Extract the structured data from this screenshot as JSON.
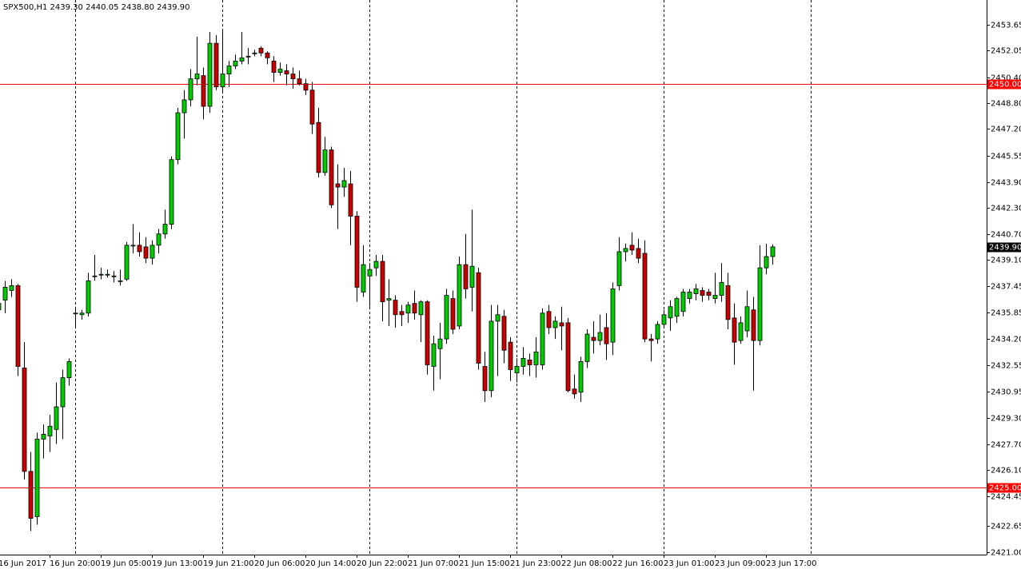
{
  "chart_data": {
    "type": "candlestick",
    "title": "SPX500,H1  2439.30 2440.05 2438.80 2439.90",
    "categories": [
      "16 Jun 2017",
      null,
      null,
      null,
      null,
      null,
      null,
      null,
      "16 Jun 20:00",
      null,
      null,
      null,
      null,
      null,
      null,
      null,
      "19 Jun 05:00",
      null,
      null,
      null,
      null,
      null,
      null,
      null,
      "19 Jun 13:00",
      null,
      null,
      null,
      null,
      null,
      null,
      null,
      "19 Jun 21:00",
      null,
      null,
      null,
      null,
      null,
      null,
      null,
      "20 Jun 06:00",
      null,
      null,
      null,
      null,
      null,
      null,
      null,
      "20 Jun 14:00",
      null,
      null,
      null,
      null,
      null,
      null,
      null,
      "20 Jun 22:00",
      null,
      null,
      null,
      null,
      null,
      null,
      null,
      "21 Jun 07:00",
      null,
      null,
      null,
      null,
      null,
      null,
      null,
      "21 Jun 15:00",
      null,
      null,
      null,
      null,
      null,
      null,
      null,
      "21 Jun 23:00",
      null,
      null,
      null,
      null,
      null,
      null,
      null,
      "22 Jun 08:00",
      null,
      null,
      null,
      null,
      null,
      null,
      null,
      "22 Jun 16:00",
      null,
      null,
      null,
      null,
      null,
      null,
      null,
      "23 Jun 01:00",
      null,
      null,
      null,
      null,
      null,
      null,
      null,
      "23 Jun 09:00",
      null,
      null,
      null,
      null,
      null,
      null,
      null,
      "23 Jun 17:00",
      null
    ],
    "open": [
      2436.0,
      2436.6,
      2437.2,
      2437.5,
      2432.4,
      2426.0,
      2423.2,
      2428.0,
      2428.2,
      2428.6,
      2430.0,
      2431.8,
      2435.8,
      2435.7,
      2435.8,
      2438.1,
      2438.2,
      2438.2,
      2438.1,
      2437.8,
      2437.9,
      2440.0,
      2440.0,
      2439.9,
      2439.2,
      2440.0,
      2440.7,
      2441.3,
      2445.3,
      2448.2,
      2449.0,
      2450.3,
      2450.5,
      2448.6,
      2452.5,
      2449.8,
      2450.6,
      2451.1,
      2451.4,
      2451.7,
      2451.9,
      2452.2,
      2451.9,
      2451.4,
      2450.7,
      2450.8,
      2450.6,
      2450.3,
      2450.0,
      2449.6,
      2447.6,
      2444.5,
      2445.9,
      2443.8,
      2443.6,
      2443.8,
      2441.8,
      2437.1,
      2438.1,
      2438.6,
      2439.0,
      2436.6,
      2436.6,
      2435.9,
      2435.8,
      2436.4,
      2435.7,
      2436.5,
      2432.5,
      2433.6,
      2434.2,
      2436.7,
      2435.0,
      2438.8,
      2437.4,
      2438.3,
      2432.5,
      2431.0,
      2435.3,
      2435.6,
      2434.0,
      2432.1,
      2432.5,
      2432.9,
      2432.6,
      2432.6,
      2435.9,
      2434.9,
      2435.2,
      2435.2,
      2431.1,
      2430.9,
      2432.8,
      2434.3,
      2434.1,
      2434.9,
      2434.0,
      2437.5,
      2439.6,
      2440.0,
      2439.8,
      2439.5,
      2434.2,
      2434.2,
      2435.1,
      2435.5,
      2435.6,
      2435.9,
      2436.7,
      2437.0,
      2437.2,
      2437.1,
      2436.7,
      2436.9,
      2437.5,
      2435.5,
      2434.1,
      2434.7,
      2436.0,
      2434.1,
      2438.6,
      2439.3
    ],
    "high": [
      2436.9,
      2437.8,
      2437.9,
      2437.6,
      2434.0,
      2427.2,
      2428.4,
      2428.9,
      2429.5,
      2431.5,
      2432.3,
      2433.0,
      2436.2,
      2436.0,
      2438.3,
      2439.4,
      2438.6,
      2438.5,
      2438.4,
      2438.5,
      2440.2,
      2441.3,
      2440.8,
      2440.5,
      2440.3,
      2441.0,
      2442.2,
      2445.5,
      2448.5,
      2449.6,
      2450.9,
      2452.9,
      2451.0,
      2453.2,
      2453.0,
      2453.4,
      2451.4,
      2451.8,
      2453.2,
      2452.2,
      2452.1,
      2452.3,
      2452.0,
      2451.7,
      2451.3,
      2451.2,
      2451.0,
      2450.8,
      2450.3,
      2450.1,
      2448.5,
      2446.7,
      2446.1,
      2445.0,
      2444.8,
      2444.6,
      2442.1,
      2440.0,
      2438.9,
      2439.4,
      2439.4,
      2437.9,
      2436.9,
      2436.3,
      2436.5,
      2437.2,
      2436.6,
      2436.6,
      2434.4,
      2435.2,
      2437.3,
      2437.2,
      2439.3,
      2440.7,
      2442.2,
      2438.6,
      2433.4,
      2436.3,
      2436.3,
      2436.0,
      2434.3,
      2433.0,
      2433.7,
      2433.3,
      2434.3,
      2436.1,
      2436.3,
      2435.6,
      2436.2,
      2435.5,
      2432.0,
      2433.1,
      2434.8,
      2435.3,
      2435.7,
      2435.8,
      2437.7,
      2440.5,
      2440.1,
      2440.8,
      2440.4,
      2440.3,
      2434.5,
      2435.3,
      2436.0,
      2436.6,
      2436.8,
      2437.3,
      2437.3,
      2437.6,
      2437.4,
      2437.3,
      2438.3,
      2438.9,
      2438.3,
      2436.4,
      2435.6,
      2437.2,
      2436.8,
      2440.0,
      2440.1,
      2440.05
    ],
    "low": [
      2435.6,
      2435.8,
      2436.8,
      2431.9,
      2425.5,
      2422.3,
      2422.7,
      2426.8,
      2427.2,
      2427.7,
      2428.0,
      2431.3,
      2435.0,
      2435.4,
      2435.6,
      2437.8,
      2437.9,
      2438.0,
      2437.7,
      2437.5,
      2437.8,
      2439.5,
      2439.3,
      2438.9,
      2438.8,
      2439.5,
      2440.4,
      2441.0,
      2445.0,
      2446.6,
      2448.6,
      2449.9,
      2447.8,
      2448.2,
      2449.6,
      2449.5,
      2449.8,
      2450.9,
      2451.2,
      2451.2,
      2451.7,
      2451.7,
      2451.2,
      2450.1,
      2450.5,
      2449.9,
      2449.7,
      2449.9,
      2449.3,
      2446.9,
      2444.2,
      2444.3,
      2442.3,
      2441.0,
      2443.0,
      2440.0,
      2436.5,
      2436.8,
      2436.2,
      2438.1,
      2435.3,
      2435.0,
      2434.9,
      2435.0,
      2435.2,
      2435.4,
      2434.0,
      2432.0,
      2431.0,
      2431.7,
      2433.9,
      2434.5,
      2434.8,
      2436.7,
      2435.9,
      2432.3,
      2430.3,
      2430.6,
      2431.9,
      2432.7,
      2431.6,
      2431.5,
      2432.0,
      2431.9,
      2431.8,
      2432.3,
      2434.5,
      2434.2,
      2433.5,
      2430.9,
      2430.5,
      2430.3,
      2432.4,
      2433.3,
      2433.8,
      2432.9,
      2433.2,
      2437.2,
      2439.0,
      2439.4,
      2438.9,
      2434.0,
      2432.8,
      2433.9,
      2434.9,
      2434.7,
      2435.2,
      2435.6,
      2436.4,
      2436.6,
      2436.5,
      2436.6,
      2436.4,
      2436.5,
      2434.8,
      2432.6,
      2433.9,
      2434.3,
      2431.0,
      2433.8,
      2438.2,
      2438.8
    ],
    "close": [
      2436.4,
      2437.4,
      2437.5,
      2432.5,
      2426.0,
      2423.1,
      2428.0,
      2428.3,
      2428.8,
      2430.0,
      2431.8,
      2432.8,
      2435.8,
      2435.8,
      2437.8,
      2438.1,
      2438.2,
      2438.2,
      2438.1,
      2437.8,
      2440.0,
      2440.0,
      2439.6,
      2439.2,
      2440.0,
      2440.7,
      2441.3,
      2445.3,
      2448.2,
      2449.0,
      2450.3,
      2450.6,
      2448.6,
      2452.5,
      2449.8,
      2450.6,
      2451.1,
      2451.4,
      2451.6,
      2451.7,
      2451.9,
      2451.9,
      2451.6,
      2450.7,
      2450.9,
      2450.6,
      2450.3,
      2450.0,
      2449.6,
      2447.5,
      2444.5,
      2445.9,
      2442.5,
      2443.6,
      2444.0,
      2441.8,
      2437.4,
      2438.8,
      2438.5,
      2439.0,
      2436.5,
      2436.7,
      2435.7,
      2435.7,
      2436.3,
      2435.8,
      2436.5,
      2432.6,
      2433.9,
      2434.2,
      2436.9,
      2434.8,
      2438.8,
      2437.3,
      2438.7,
      2432.7,
      2431.0,
      2435.3,
      2435.7,
      2433.5,
      2432.3,
      2432.5,
      2433.0,
      2432.6,
      2433.4,
      2435.8,
      2434.9,
      2435.3,
      2435.0,
      2431.0,
      2430.8,
      2432.8,
      2434.5,
      2434.1,
      2434.6,
      2433.9,
      2437.3,
      2439.6,
      2439.8,
      2439.7,
      2439.2,
      2434.2,
      2434.1,
      2435.1,
      2435.7,
      2436.2,
      2436.7,
      2437.1,
      2437.1,
      2437.3,
      2436.9,
      2436.9,
      2436.9,
      2437.7,
      2435.4,
      2434.0,
      2435.2,
      2436.2,
      2434.1,
      2438.6,
      2439.3,
      2439.9
    ],
    "up_color": "#00cc00",
    "down_color": "#cc0000",
    "ylim": [
      2420.85,
      2455.18
    ],
    "yticks": [
      {
        "value": 2421,
        "label": "2421.00"
      },
      {
        "value": 2422.65,
        "label": "2422.65"
      },
      {
        "value": 2424.45,
        "label": "2424.45"
      },
      {
        "value": 2426.1,
        "label": "2426.10"
      },
      {
        "value": 2427.7,
        "label": "2427.70"
      },
      {
        "value": 2429.3,
        "label": "2429.30"
      },
      {
        "value": 2430.95,
        "label": "2430.95"
      },
      {
        "value": 2432.55,
        "label": "2432.55"
      },
      {
        "value": 2434.2,
        "label": "2434.20"
      },
      {
        "value": 2435.85,
        "label": "2435.85"
      },
      {
        "value": 2437.45,
        "label": "2437.45"
      },
      {
        "value": 2439.1,
        "label": "2439.10"
      },
      {
        "value": 2440.7,
        "label": "2440.70"
      },
      {
        "value": 2442.3,
        "label": "2442.30"
      },
      {
        "value": 2443.9,
        "label": "2443.90"
      },
      {
        "value": 2445.55,
        "label": "2445.55"
      },
      {
        "value": 2447.2,
        "label": "2447.20"
      },
      {
        "value": 2448.8,
        "label": "2448.80"
      },
      {
        "value": 2450.4,
        "label": "2450.40"
      },
      {
        "value": 2452.05,
        "label": "2452.05"
      },
      {
        "value": 2453.65,
        "label": "2453.65"
      }
    ],
    "levels": [
      {
        "value": 2450,
        "label": "2450.00",
        "color": "#ff0000"
      },
      {
        "value": 2425,
        "label": "2425.00",
        "color": "#ff0000"
      }
    ],
    "last_price": {
      "value": 2439.9,
      "label": "2439.90"
    }
  }
}
